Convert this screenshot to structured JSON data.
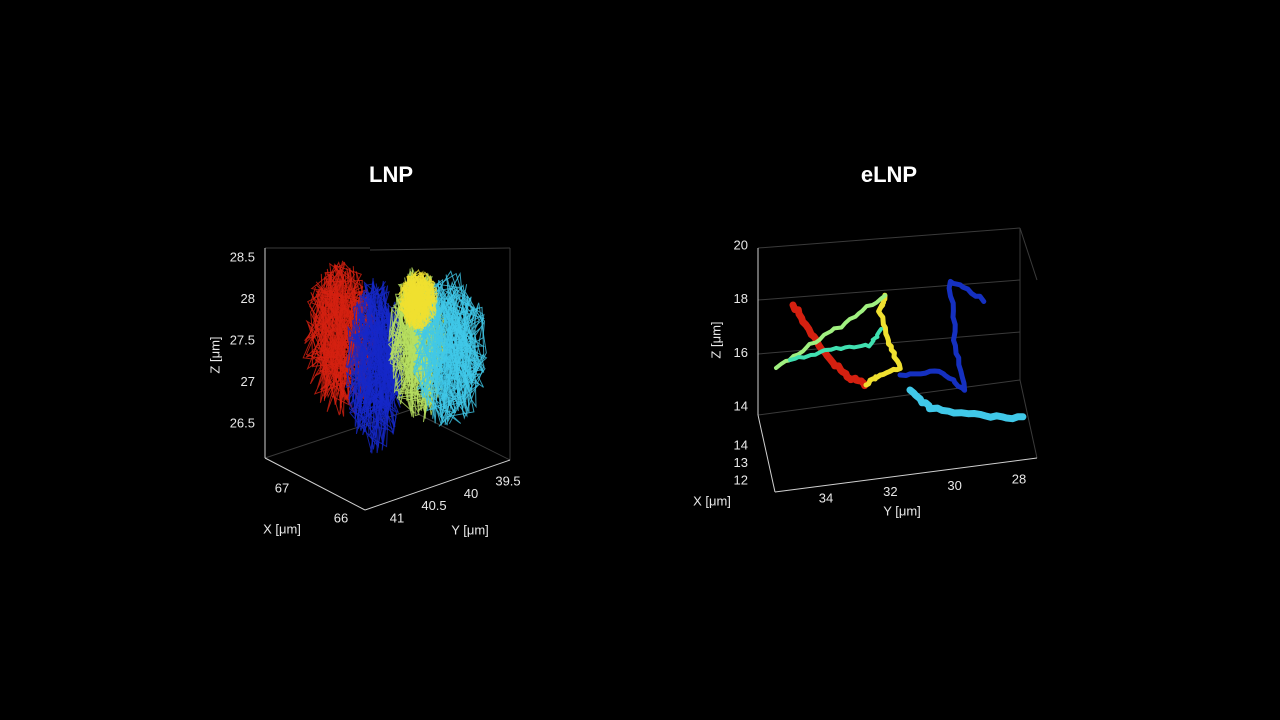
{
  "panels": [
    {
      "title": "LNP",
      "axes": {
        "z": {
          "label": "Z [μm]",
          "ticks": [
            28.5,
            28,
            27.5,
            27,
            26.5
          ]
        },
        "x": {
          "label": "X [μm]",
          "ticks": [
            67,
            66
          ]
        },
        "y": {
          "label": "Y [μm]",
          "ticks": [
            41,
            40.5,
            40,
            39.5
          ]
        }
      }
    },
    {
      "title": "eLNP",
      "axes": {
        "z": {
          "label": "Z [μm]",
          "ticks": [
            20,
            18,
            16,
            14
          ]
        },
        "x": {
          "label": "X [μm]",
          "ticks": [
            14,
            13,
            12
          ]
        },
        "y": {
          "label": "Y [μm]",
          "ticks": [
            34,
            32,
            30,
            28
          ]
        }
      }
    }
  ]
}
